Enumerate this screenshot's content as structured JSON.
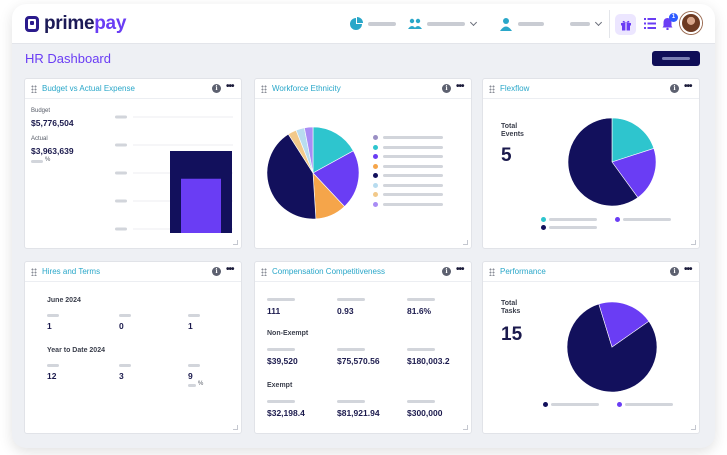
{
  "app": {
    "logo_prime": "prime",
    "logo_pay": "pay"
  },
  "page": {
    "title": "HR Dashboard"
  },
  "colors": {
    "navy": "#12105c",
    "purple": "#6a3df4",
    "teal": "#2ec5ce",
    "orange": "#f5a54a",
    "accent_title": "#2aa7c9"
  },
  "nav": {
    "icons": [
      "pie-chart-icon",
      "users-icon",
      "user-icon",
      "gift-icon",
      "list-icon",
      "bell-icon"
    ],
    "notification_count": "1"
  },
  "cards": {
    "budget": {
      "title": "Budget vs Actual Expense",
      "budget_label": "Budget",
      "budget_value": "$5,776,504",
      "actual_label": "Actual",
      "actual_value": "$3,963,639",
      "actual_unit": "%",
      "chart_data": {
        "type": "bar",
        "series": [
          {
            "values": [
              5776504
            ]
          },
          {
            "values": [
              3963639
            ]
          }
        ]
      }
    },
    "ethnicity": {
      "title": "Workforce Ethnicity",
      "chart_data": {
        "type": "pie",
        "slices": [
          {
            "value": 17,
            "color": "#2ec5ce"
          },
          {
            "value": 21,
            "color": "#6a3df4"
          },
          {
            "value": 11,
            "color": "#f5a54a"
          },
          {
            "value": 42,
            "color": "#12105c"
          },
          {
            "value": 3,
            "color": "#f2c98a"
          },
          {
            "value": 3,
            "color": "#b8dcef"
          },
          {
            "value": 3,
            "color": "#a98cf5"
          }
        ],
        "legend_colors": [
          "#9a8fc4",
          "#2ec5ce",
          "#6a3df4",
          "#f5a54a",
          "#12105c",
          "#b8dcef",
          "#f2c98a",
          "#a98cf5"
        ]
      }
    },
    "flexflow": {
      "title": "Flexflow",
      "total_label_1": "Total",
      "total_label_2": "Events",
      "total_value": "5",
      "chart_data": {
        "type": "pie",
        "slices": [
          {
            "value": 20,
            "color": "#2ec5ce"
          },
          {
            "value": 20,
            "color": "#6a3df4"
          },
          {
            "value": 60,
            "color": "#12105c"
          }
        ]
      }
    },
    "hires": {
      "title": "Hires and Terms",
      "period1_label": "June 2024",
      "period1_values": [
        "1",
        "0",
        "1"
      ],
      "period2_label": "Year to Date 2024",
      "period2_values": [
        "12",
        "3",
        "9"
      ],
      "unit": "%"
    },
    "compensation": {
      "title": "Compensation Competitiveness",
      "row1": [
        "111",
        "0.93",
        "81.6%"
      ],
      "section2_label": "Non-Exempt",
      "row2": [
        "$39,520",
        "$75,570.56",
        "$180,003.2"
      ],
      "section3_label": "Exempt",
      "row3": [
        "$32,198.4",
        "$81,921.94",
        "$300,000"
      ]
    },
    "performance": {
      "title": "Performance",
      "total_label_1": "Total",
      "total_label_2": "Tasks",
      "total_value": "15",
      "chart_data": {
        "type": "pie",
        "slices": [
          {
            "value": 80,
            "color": "#12105c"
          },
          {
            "value": 20,
            "color": "#6a3df4"
          }
        ]
      }
    }
  }
}
